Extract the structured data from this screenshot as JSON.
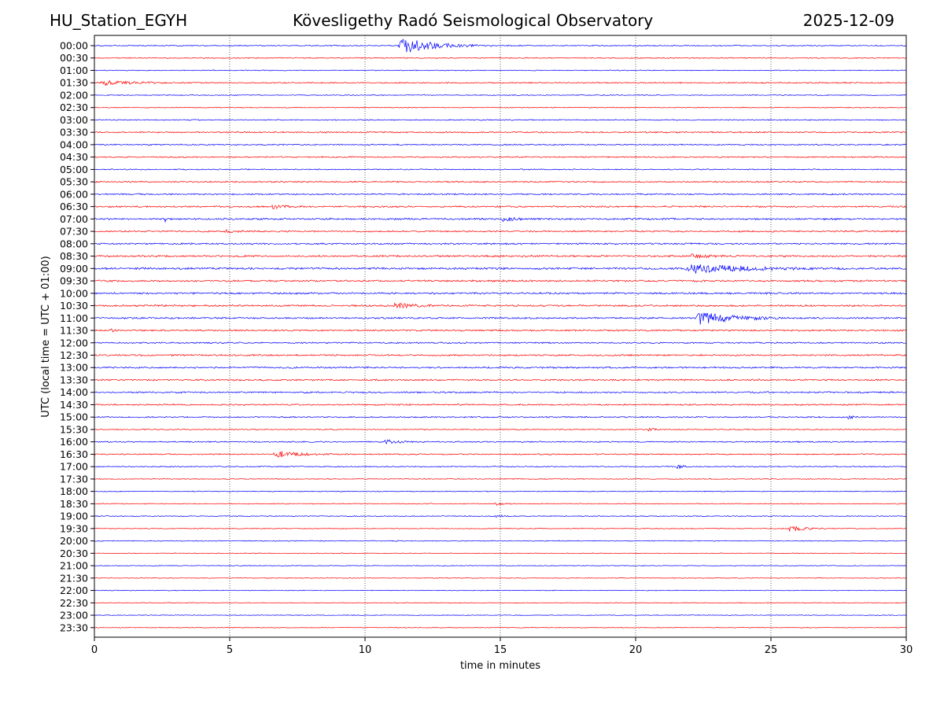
{
  "header": {
    "station": "HU_Station_EGYH",
    "observatory": "Kövesligethy Radó Seismological Observatory",
    "date": "2025-12-09"
  },
  "chart_data": {
    "type": "line",
    "title": "Kövesligethy Radó Seismological Observatory",
    "xlabel": "time in minutes",
    "ylabel": "UTC (local time = UTC + 01:00)",
    "xlim": [
      0,
      30
    ],
    "x_ticks": [
      0,
      5,
      10,
      15,
      20,
      25,
      30
    ],
    "grid": "vertical dotted at each x tick",
    "row_labels": [
      "00:00",
      "00:30",
      "01:00",
      "01:30",
      "02:00",
      "02:30",
      "03:00",
      "03:30",
      "04:00",
      "04:30",
      "05:00",
      "05:30",
      "06:00",
      "06:30",
      "07:00",
      "07:30",
      "08:00",
      "08:30",
      "09:00",
      "09:30",
      "10:00",
      "10:30",
      "11:00",
      "11:30",
      "12:00",
      "12:30",
      "13:00",
      "13:30",
      "14:00",
      "14:30",
      "15:00",
      "15:30",
      "16:00",
      "16:30",
      "17:00",
      "17:30",
      "18:00",
      "18:30",
      "19:00",
      "19:30",
      "20:00",
      "20:30",
      "21:00",
      "21:30",
      "22:00",
      "22:30",
      "23:00",
      "23:30"
    ],
    "series_colors": [
      "#0000ff",
      "#ff0000"
    ],
    "row_noise": [
      0.6,
      0.6,
      0.5,
      0.7,
      0.5,
      0.5,
      0.6,
      0.8,
      0.7,
      0.7,
      0.6,
      0.8,
      0.8,
      0.9,
      1.0,
      0.9,
      0.9,
      1.0,
      1.1,
      1.0,
      1.0,
      1.0,
      0.9,
      0.9,
      0.8,
      0.9,
      0.9,
      0.9,
      0.9,
      0.8,
      0.7,
      0.6,
      0.7,
      0.7,
      0.6,
      0.5,
      0.5,
      0.5,
      0.5,
      0.5,
      0.5,
      0.4,
      0.4,
      0.4,
      0.4,
      0.4,
      0.4,
      0.4
    ],
    "events": [
      {
        "row": "00:00",
        "start_min": 11.2,
        "amplitude": 12,
        "duration_min": 3.5
      },
      {
        "row": "01:30",
        "start_min": 0.2,
        "amplitude": 3,
        "duration_min": 3.5
      },
      {
        "row": "06:30",
        "start_min": 6.5,
        "amplitude": 3,
        "duration_min": 1.5
      },
      {
        "row": "07:00",
        "start_min": 15.0,
        "amplitude": 4,
        "duration_min": 1.2
      },
      {
        "row": "07:00",
        "start_min": 2.6,
        "amplitude": 4,
        "duration_min": 0.15
      },
      {
        "row": "07:30",
        "start_min": 4.8,
        "amplitude": 3,
        "duration_min": 0.8
      },
      {
        "row": "08:30",
        "start_min": 22.0,
        "amplitude": 3,
        "duration_min": 2.0
      },
      {
        "row": "09:00",
        "start_min": 21.8,
        "amplitude": 7,
        "duration_min": 6.0
      },
      {
        "row": "10:30",
        "start_min": 11.0,
        "amplitude": 3,
        "duration_min": 2.5
      },
      {
        "row": "11:00",
        "start_min": 22.2,
        "amplitude": 10,
        "duration_min": 3.5
      },
      {
        "row": "11:30",
        "start_min": 0.6,
        "amplitude": 4,
        "duration_min": 0.3
      },
      {
        "row": "15:00",
        "start_min": 27.8,
        "amplitude": 3,
        "duration_min": 0.6
      },
      {
        "row": "15:30",
        "start_min": 20.4,
        "amplitude": 4,
        "duration_min": 0.6
      },
      {
        "row": "16:00",
        "start_min": 10.7,
        "amplitude": 3,
        "duration_min": 1.5
      },
      {
        "row": "16:30",
        "start_min": 6.6,
        "amplitude": 5,
        "duration_min": 2.5
      },
      {
        "row": "17:00",
        "start_min": 21.5,
        "amplitude": 5,
        "duration_min": 0.5
      },
      {
        "row": "18:30",
        "start_min": 14.8,
        "amplitude": 2,
        "duration_min": 0.8
      },
      {
        "row": "19:00",
        "start_min": 14.8,
        "amplitude": 2,
        "duration_min": 1.0
      },
      {
        "row": "19:30",
        "start_min": 25.6,
        "amplitude": 5,
        "duration_min": 1.6
      }
    ]
  }
}
